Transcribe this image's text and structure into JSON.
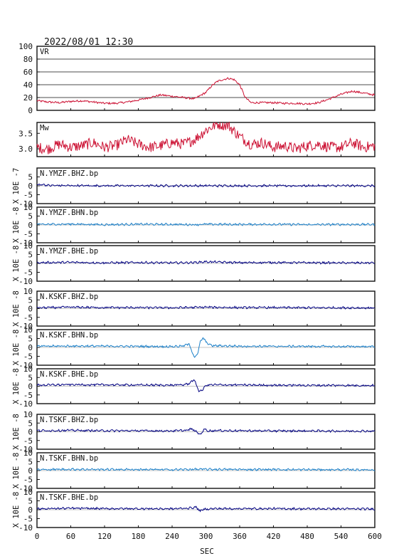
{
  "chart_data": [
    {
      "id": "vr",
      "type": "line",
      "label": "VR",
      "ylim": [
        0,
        100
      ],
      "yticks": [
        0,
        20,
        40,
        60,
        80,
        100
      ],
      "grid": true,
      "color": "#cc1133",
      "series": [
        {
          "x": [
            0,
            20,
            40,
            60,
            80,
            100,
            120,
            140,
            160,
            180,
            200,
            220,
            240,
            260,
            280,
            300,
            310,
            320,
            330,
            340,
            350,
            360,
            370,
            380,
            400,
            420,
            440,
            460,
            480,
            500,
            520,
            540,
            560,
            580,
            600
          ],
          "y": [
            15,
            13,
            12,
            14,
            15,
            13,
            11,
            11,
            13,
            16,
            20,
            24,
            22,
            20,
            18,
            28,
            38,
            45,
            48,
            50,
            48,
            40,
            20,
            12,
            12,
            12,
            11,
            11,
            10,
            12,
            18,
            25,
            30,
            27,
            24
          ]
        }
      ]
    },
    {
      "id": "mw",
      "type": "line",
      "label": "Mw",
      "ylim": [
        2.75,
        3.85
      ],
      "yticks": [
        3.0,
        3.5
      ],
      "ytick_labels": [
        "3.0",
        "3.5"
      ],
      "grid": false,
      "color": "#cc1133",
      "series": [
        {
          "x": [
            0,
            20,
            40,
            60,
            80,
            100,
            120,
            140,
            160,
            180,
            200,
            220,
            240,
            260,
            280,
            300,
            320,
            340,
            360,
            380,
            400,
            420,
            440,
            460,
            480,
            500,
            520,
            540,
            560,
            580,
            600
          ],
          "y": [
            3.05,
            3.0,
            3.15,
            3.05,
            3.1,
            3.2,
            3.05,
            3.1,
            3.3,
            3.15,
            3.05,
            3.1,
            3.2,
            3.15,
            3.3,
            3.6,
            3.8,
            3.75,
            3.4,
            3.15,
            3.2,
            3.05,
            3.1,
            3.0,
            3.1,
            3.15,
            3.05,
            3.05,
            3.2,
            3.05,
            3.1
          ]
        }
      ]
    },
    {
      "id": "ymzf-bhz",
      "type": "line",
      "label": "N.YMZF.BHZ.bp",
      "ylabel": "X 10E -7",
      "ylim": [
        -10,
        10
      ],
      "yticks": [
        -10,
        -5,
        0,
        5
      ],
      "color": "#000080",
      "series": [
        {
          "x": [
            0,
            10,
            20,
            60,
            120,
            180,
            240,
            300,
            360,
            420,
            480,
            540,
            600
          ],
          "y": [
            0.4,
            0.8,
            0.2,
            0.1,
            0.05,
            0.05,
            0.03,
            0.03,
            0.02,
            0.02,
            0.02,
            0.02,
            0.02
          ]
        }
      ]
    },
    {
      "id": "ymzf-bhn",
      "type": "line",
      "label": "N.YMZF.BHN.bp",
      "ylabel": "X 10E -8",
      "ylim": [
        -10,
        10
      ],
      "yticks": [
        -10,
        -5,
        0,
        5,
        10
      ],
      "color": "#1a7fc8",
      "series": [
        {
          "x": [
            0,
            60,
            120,
            180,
            240,
            280,
            300,
            360,
            420,
            480,
            540,
            600
          ],
          "y": [
            0.3,
            0.5,
            0.2,
            0.4,
            0.3,
            0.2,
            0.4,
            0.3,
            0.4,
            0.2,
            0.3,
            0.3
          ]
        }
      ]
    },
    {
      "id": "ymzf-bhe",
      "type": "line",
      "label": "N.YMZF.BHE.bp",
      "ylabel": "X 10E -8",
      "ylim": [
        -10,
        10
      ],
      "yticks": [
        -10,
        -5,
        0,
        5,
        10
      ],
      "color": "#000080",
      "series": [
        {
          "x": [
            0,
            60,
            120,
            180,
            240,
            280,
            300,
            360,
            420,
            480,
            540,
            600
          ],
          "y": [
            0.4,
            0.6,
            0.3,
            0.5,
            0.3,
            0.5,
            0.9,
            0.4,
            0.5,
            0.4,
            0.3,
            0.3
          ]
        }
      ]
    },
    {
      "id": "kskf-bhz",
      "type": "line",
      "label": "N.KSKF.BHZ.bp",
      "ylabel": "X 10E -8",
      "ylim": [
        -10,
        10
      ],
      "yticks": [
        -10,
        -5,
        0,
        5,
        10
      ],
      "color": "#000080",
      "series": [
        {
          "x": [
            0,
            60,
            120,
            180,
            240,
            280,
            300,
            360,
            420,
            480,
            540,
            600
          ],
          "y": [
            0.5,
            0.8,
            0.6,
            0.6,
            0.5,
            0.7,
            0.8,
            0.6,
            0.6,
            0.5,
            0.5,
            0.4
          ]
        }
      ]
    },
    {
      "id": "kskf-bhn",
      "type": "line",
      "label": "N.KSKF.BHN.bp",
      "ylabel": "X 10E -8",
      "ylim": [
        -10,
        10
      ],
      "yticks": [
        -10,
        -5,
        0,
        5,
        10
      ],
      "color": "#1a7fc8",
      "series": [
        {
          "x": [
            0,
            60,
            120,
            180,
            240,
            260,
            270,
            275,
            280,
            285,
            290,
            295,
            300,
            310,
            360,
            420,
            480,
            540,
            600
          ],
          "y": [
            0.6,
            0.8,
            0.7,
            0.6,
            0.5,
            0.8,
            2.0,
            -2.0,
            -5.5,
            -4.0,
            3.0,
            5.5,
            3.0,
            1.0,
            0.7,
            0.6,
            0.6,
            0.5,
            0.5
          ]
        }
      ]
    },
    {
      "id": "kskf-bhe",
      "type": "line",
      "label": "N.KSKF.BHE.bp",
      "ylabel": "X 10E -8",
      "ylim": [
        -10,
        10
      ],
      "yticks": [
        -10,
        -5,
        0,
        5,
        10
      ],
      "color": "#000080",
      "series": [
        {
          "x": [
            0,
            60,
            120,
            180,
            240,
            260,
            270,
            278,
            283,
            288,
            293,
            300,
            310,
            360,
            420,
            480,
            540,
            600
          ],
          "y": [
            0.6,
            0.9,
            0.8,
            0.7,
            0.6,
            0.8,
            1.5,
            3.8,
            1.0,
            -3.0,
            -2.5,
            0.5,
            0.8,
            0.7,
            0.6,
            0.5,
            0.5,
            0.4
          ]
        }
      ]
    },
    {
      "id": "tskf-bhz",
      "type": "line",
      "label": "N.TSKF.BHZ.bp",
      "ylabel": "X 10E -8",
      "ylim": [
        -10,
        10
      ],
      "yticks": [
        -10,
        -5,
        0,
        5,
        10
      ],
      "color": "#000080",
      "series": [
        {
          "x": [
            0,
            60,
            120,
            180,
            240,
            265,
            275,
            283,
            290,
            297,
            305,
            320,
            360,
            420,
            480,
            540,
            600
          ],
          "y": [
            0.6,
            0.8,
            0.6,
            0.6,
            0.5,
            0.8,
            1.6,
            0.0,
            -1.6,
            1.5,
            0.5,
            0.7,
            0.6,
            0.5,
            0.5,
            0.4,
            0.4
          ]
        }
      ]
    },
    {
      "id": "tskf-bhn",
      "type": "line",
      "label": "N.TSKF.BHN.bp",
      "ylabel": "X 10E -8",
      "ylim": [
        -10,
        10
      ],
      "yticks": [
        -10,
        -5,
        0,
        5,
        10
      ],
      "color": "#1a7fc8",
      "series": [
        {
          "x": [
            0,
            60,
            120,
            180,
            240,
            280,
            300,
            360,
            420,
            480,
            540,
            600
          ],
          "y": [
            0.5,
            0.7,
            0.6,
            0.6,
            0.5,
            0.7,
            0.7,
            0.6,
            0.6,
            0.5,
            0.5,
            0.4
          ]
        }
      ]
    },
    {
      "id": "tskf-bhe",
      "type": "line",
      "label": "N.TSKF.BHE.bp",
      "ylabel": "X 10E -8",
      "ylim": [
        -10,
        10
      ],
      "yticks": [
        -10,
        -5,
        0,
        5,
        10
      ],
      "color": "#000080",
      "series": [
        {
          "x": [
            0,
            60,
            120,
            180,
            240,
            270,
            283,
            290,
            297,
            310,
            360,
            420,
            480,
            540,
            600
          ],
          "y": [
            0.5,
            0.8,
            0.6,
            0.6,
            0.5,
            0.9,
            1.4,
            -0.8,
            0.3,
            0.6,
            0.6,
            0.6,
            0.5,
            0.5,
            0.4
          ]
        }
      ]
    }
  ],
  "title": "2022/08/01  12:30",
  "xlim": [
    0,
    600
  ],
  "xticks": [
    0,
    60,
    120,
    180,
    240,
    300,
    360,
    420,
    480,
    540,
    600
  ],
  "xlabel": "SEC"
}
